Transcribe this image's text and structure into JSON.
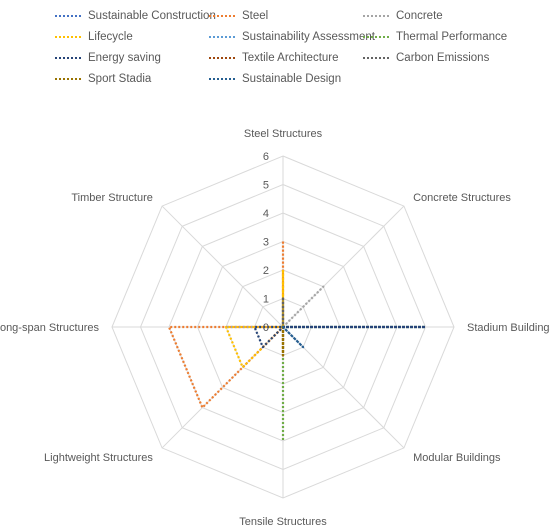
{
  "chart_data": {
    "type": "radar",
    "title": "",
    "axes": [
      "Steel Structures",
      "Concrete Structures",
      "Stadium Buildings",
      "Modular Buildings",
      "Tensile Structures",
      "Lightweight Structures",
      "Long-span Structures",
      "Timber Structure"
    ],
    "r_ticks": [
      "0",
      "1",
      "2",
      "3",
      "4",
      "5",
      "6"
    ],
    "rmax": 6,
    "legend_position": "top",
    "series": [
      {
        "name": "Sustainable Construction",
        "color": "#4472C4",
        "values": [
          0,
          0,
          5,
          0,
          0,
          0,
          0,
          0
        ]
      },
      {
        "name": "Steel",
        "color": "#ED7D31",
        "values": [
          3,
          0,
          0,
          0,
          0,
          4,
          4,
          0
        ]
      },
      {
        "name": "Concrete",
        "color": "#A5A5A5",
        "values": [
          0,
          2,
          0,
          0,
          0,
          0,
          2,
          0
        ]
      },
      {
        "name": "Lifecycle",
        "color": "#FFC000",
        "values": [
          2,
          0,
          0,
          0,
          0,
          2,
          2,
          0
        ]
      },
      {
        "name": "Sustainability Assessment",
        "color": "#5B9BD5",
        "values": [
          1,
          0,
          0,
          0,
          0,
          0,
          0,
          0
        ]
      },
      {
        "name": "Thermal Performance",
        "color": "#70AD47",
        "values": [
          0,
          0,
          5,
          0,
          4,
          0,
          0,
          0
        ]
      },
      {
        "name": "Energy saving",
        "color": "#264478",
        "values": [
          0,
          0,
          5,
          0,
          0,
          1,
          1,
          0
        ]
      },
      {
        "name": "Textile Architecture",
        "color": "#9E480E",
        "values": [
          0,
          0,
          0,
          0,
          1,
          0,
          0,
          0
        ]
      },
      {
        "name": "Carbon Emissions",
        "color": "#636363",
        "values": [
          1,
          0,
          0,
          0,
          0,
          0,
          0,
          0
        ]
      },
      {
        "name": "Sport Stadia",
        "color": "#997300",
        "values": [
          0,
          0,
          0,
          0,
          1,
          0,
          0,
          0
        ]
      },
      {
        "name": "Sustainable Design",
        "color": "#255E91",
        "values": [
          0,
          0,
          0,
          1,
          0,
          0,
          0,
          0
        ]
      }
    ]
  }
}
